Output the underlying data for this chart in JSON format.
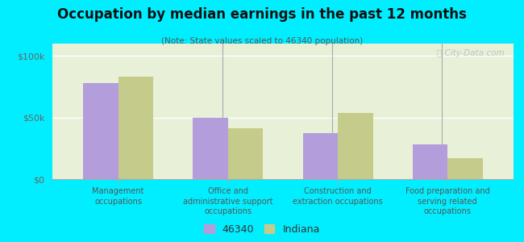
{
  "title": "Occupation by median earnings in the past 12 months",
  "subtitle": "(Note: State values scaled to 46340 population)",
  "categories": [
    "Management\noccupations",
    "Office and\nadministrative support\noccupations",
    "Construction and\nextraction occupations",
    "Food preparation and\nserving related\noccupations"
  ],
  "values_46340": [
    78000,
    50000,
    37000,
    28000
  ],
  "values_indiana": [
    83000,
    41000,
    54000,
    17000
  ],
  "color_46340": "#b39ddb",
  "color_indiana": "#c5cb8a",
  "ylim": [
    0,
    110000
  ],
  "yticks": [
    0,
    50000,
    100000
  ],
  "ytick_labels": [
    "$0",
    "$50k",
    "$100k"
  ],
  "legend_labels": [
    "46340",
    "Indiana"
  ],
  "outer_background": "#00eeff",
  "watermark": "ⓘ City-Data.com",
  "bar_width": 0.32
}
